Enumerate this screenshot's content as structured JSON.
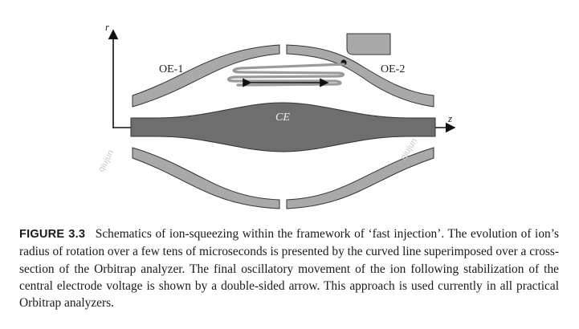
{
  "figure": {
    "axis_r": "r",
    "axis_z": "z",
    "outer_electrode_1": "OE-1",
    "outer_electrode_2": "OE-2",
    "central_electrode": "CE",
    "watermark": "qiujun"
  },
  "caption": {
    "label": "FIGURE 3.3",
    "text": "Schematics of ion-squeezing within the framework of ‘fast injection’. The evolution of ion’s radius of rotation over a few tens of microseconds is presented by the curved line superimposed over a cross-section of the Orbitrap analyzer. The final oscillatory movement of the ion following stabilization of the central electrode voltage is shown by a double-sided arrow. This approach is used currently in all practical Orbitrap analyzers."
  }
}
